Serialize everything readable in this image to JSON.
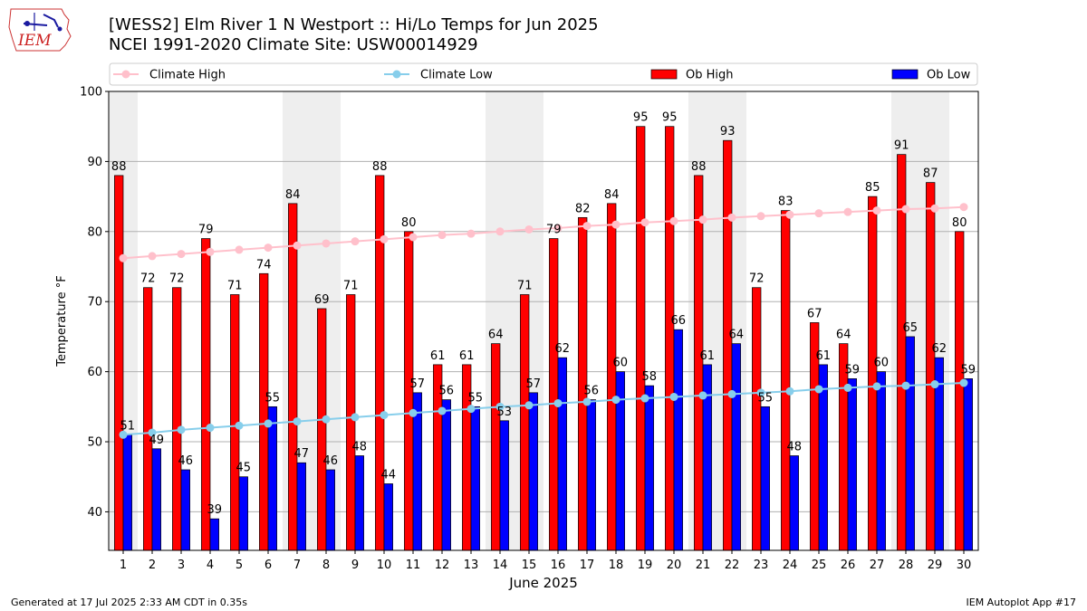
{
  "header": {
    "title_line1": "[WESS2] Elm River 1 N Westport :: Hi/Lo Temps for Jun 2025",
    "title_line2": "NCEI 1991-2020 Climate Site: USW00014929",
    "logo_text": "IEM"
  },
  "footer": {
    "generated": "Generated at 17 Jul 2025 2:33 AM CDT in 0.35s",
    "app": "IEM Autoplot App #17"
  },
  "chart_data": {
    "type": "bar",
    "xlabel": "June 2025",
    "ylabel": "Temperature °F",
    "ylim": [
      34.5,
      100
    ],
    "yticks": [
      40,
      50,
      60,
      70,
      80,
      90,
      100
    ],
    "grid": true,
    "legend_position": "top",
    "categories": [
      "1",
      "2",
      "3",
      "4",
      "5",
      "6",
      "7",
      "8",
      "9",
      "10",
      "11",
      "12",
      "13",
      "14",
      "15",
      "16",
      "17",
      "18",
      "19",
      "20",
      "21",
      "22",
      "23",
      "24",
      "25",
      "26",
      "27",
      "28",
      "29",
      "30"
    ],
    "weekend_days": [
      1,
      7,
      8,
      14,
      15,
      21,
      22,
      28,
      29
    ],
    "series": [
      {
        "name": "Climate High",
        "kind": "line",
        "color": "#ffc0cb",
        "values": [
          76.2,
          76.5,
          76.8,
          77.1,
          77.4,
          77.7,
          78.0,
          78.3,
          78.6,
          78.9,
          79.2,
          79.5,
          79.7,
          80.0,
          80.3,
          80.5,
          80.8,
          81.0,
          81.3,
          81.5,
          81.7,
          82.0,
          82.2,
          82.4,
          82.6,
          82.8,
          83.0,
          83.2,
          83.3,
          83.5
        ]
      },
      {
        "name": "Climate Low",
        "kind": "line",
        "color": "#87ceeb",
        "values": [
          51.0,
          51.3,
          51.7,
          52.0,
          52.3,
          52.6,
          52.9,
          53.2,
          53.5,
          53.8,
          54.1,
          54.4,
          54.7,
          55.0,
          55.2,
          55.5,
          55.7,
          56.0,
          56.2,
          56.4,
          56.6,
          56.8,
          57.0,
          57.2,
          57.5,
          57.7,
          57.9,
          58.0,
          58.2,
          58.4
        ]
      },
      {
        "name": "Ob High",
        "kind": "bar",
        "color": "#ff0000",
        "values": [
          88,
          72,
          72,
          79,
          71,
          74,
          84,
          69,
          71,
          88,
          80,
          61,
          61,
          64,
          71,
          79,
          82,
          84,
          95,
          95,
          88,
          93,
          72,
          83,
          67,
          64,
          85,
          91,
          87,
          80
        ]
      },
      {
        "name": "Ob Low",
        "kind": "bar",
        "color": "#0000ff",
        "values": [
          51,
          49,
          46,
          39,
          45,
          55,
          47,
          46,
          48,
          44,
          57,
          56,
          55,
          53,
          57,
          62,
          56,
          60,
          58,
          66,
          61,
          64,
          55,
          48,
          61,
          59,
          60,
          65,
          62,
          59
        ]
      }
    ]
  }
}
